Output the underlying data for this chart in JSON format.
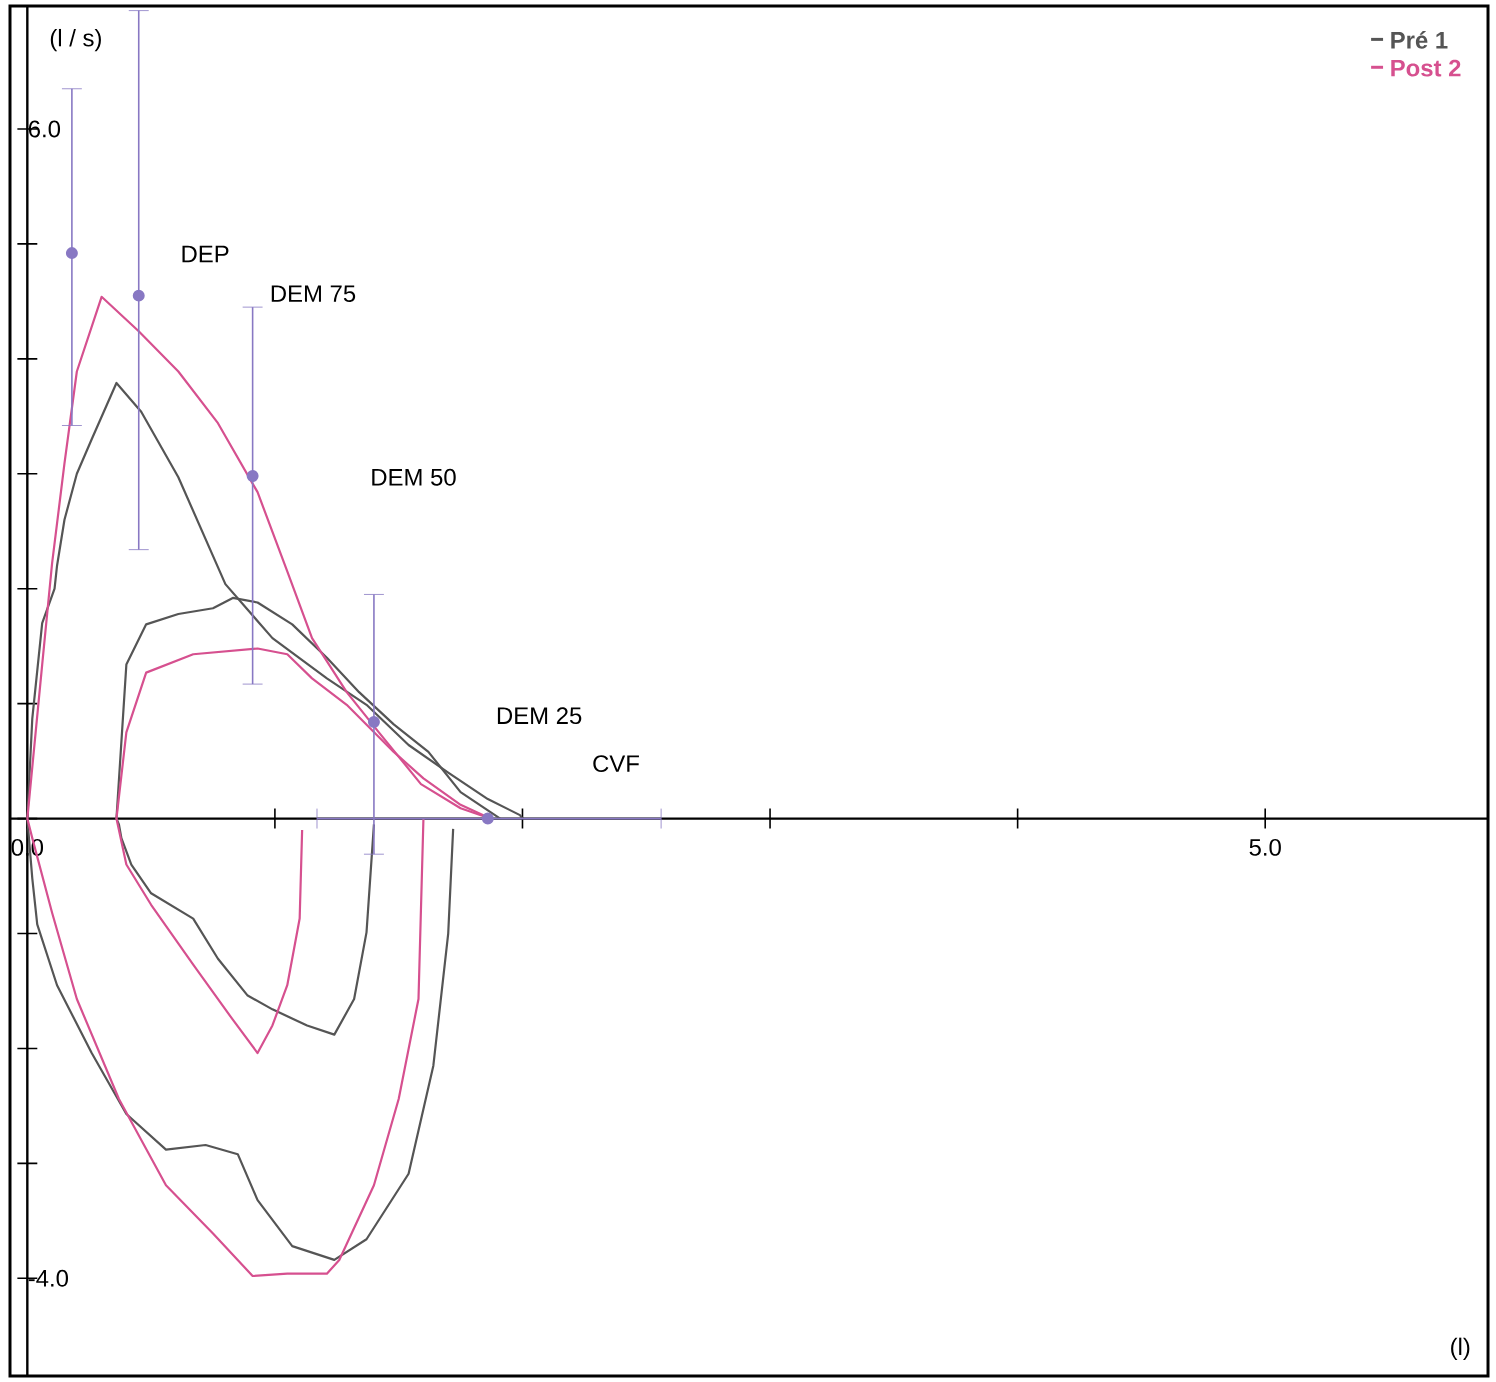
{
  "chart_data": {
    "type": "line",
    "xlabel": "(l)",
    "ylabel": "(l / s)",
    "legend": "top right",
    "xlim": [
      -0.07,
      5.9
    ],
    "ylim": [
      -4.85,
      7.07
    ],
    "xticks": [
      {
        "value": 0,
        "label": "0.0"
      },
      {
        "value": 1,
        "label": null
      },
      {
        "value": 2,
        "label": null
      },
      {
        "value": 3,
        "label": null
      },
      {
        "value": 4,
        "label": null
      },
      {
        "value": 5,
        "label": "5.0"
      }
    ],
    "yticks": [
      {
        "value": -4,
        "label": "-4.0"
      },
      {
        "value": -3,
        "label": null
      },
      {
        "value": -2,
        "label": null
      },
      {
        "value": -1,
        "label": null
      },
      {
        "value": 0,
        "label": null
      },
      {
        "value": 1,
        "label": null
      },
      {
        "value": 2,
        "label": null
      },
      {
        "value": 3,
        "label": null
      },
      {
        "value": 4,
        "label": null
      },
      {
        "value": 5,
        "label": null
      },
      {
        "value": 6,
        "label": "6.0"
      }
    ],
    "series": [
      {
        "name": "Pré 1",
        "color": "#555555",
        "x": [
          0,
          0.02,
          0.06,
          0.11,
          0.12,
          0.15,
          0.2,
          0.26,
          0.36,
          0.46,
          0.61,
          0.8,
          0.99,
          1.21,
          1.37,
          1.54,
          1.7,
          1.86,
          1.99,
          2.0,
          1.86,
          1.72,
          1.7,
          1.64,
          1.54,
          1.37,
          1.24,
          1.07,
          0.93,
          0.85,
          0.72,
          0.56,
          0.4,
          0.26,
          0.12,
          0.04,
          0.02,
          0
        ],
        "values": [
          0,
          0.87,
          1.7,
          2.0,
          2.2,
          2.6,
          3.0,
          3.3,
          3.79,
          3.54,
          2.97,
          2.04,
          1.57,
          1.22,
          0.99,
          0.64,
          0.4,
          0.17,
          0.03,
          0,
          null,
          -0.09,
          -1.0,
          -2.15,
          -3.09,
          -3.66,
          -3.84,
          -3.72,
          -3.32,
          -2.92,
          -2.84,
          -2.88,
          -2.57,
          -2.04,
          -1.45,
          -0.92,
          -0.52,
          0
        ]
      },
      {
        "color": "#555555",
        "x": [
          1.4,
          1.37,
          1.32,
          1.24,
          1.13,
          0.99,
          0.89,
          0.77,
          0.67,
          0.5,
          0.42,
          0.38,
          0.37,
          0.36,
          0.4,
          0.48,
          0.61,
          0.75,
          0.83,
          0.93,
          1.07,
          1.21,
          1.34,
          1.48,
          1.62,
          1.75,
          1.91
        ],
        "values": [
          -0.05,
          -0.99,
          -1.57,
          -1.88,
          -1.8,
          -1.66,
          -1.54,
          -1.22,
          -0.87,
          -0.65,
          -0.4,
          -0.17,
          -0.05,
          0,
          1.34,
          1.69,
          1.78,
          1.83,
          1.92,
          1.88,
          1.69,
          1.4,
          1.1,
          0.82,
          0.58,
          0.23,
          0
        ]
      },
      {
        "name": "Post 2",
        "color": "#d6508f",
        "x": [
          0,
          0.06,
          0.1,
          0.15,
          0.2,
          0.3,
          0.45,
          0.61,
          0.77,
          0.93,
          1.05,
          1.15,
          1.29,
          1.42,
          1.59,
          1.75,
          1.87,
          1.75,
          1.6,
          1.58,
          1.5,
          1.4,
          1.26,
          1.21,
          1.05,
          0.91,
          0.75,
          0.56,
          0.37,
          0.2,
          0.1,
          0.02,
          0
        ],
        "values": [
          0,
          1.34,
          2.22,
          3.09,
          3.89,
          4.54,
          4.24,
          3.89,
          3.44,
          2.84,
          2.15,
          1.57,
          1.1,
          0.75,
          0.3,
          0.09,
          0,
          null,
          0,
          -1.57,
          -2.44,
          -3.19,
          -3.84,
          -3.96,
          -3.96,
          -3.98,
          -3.61,
          -3.19,
          -2.44,
          -1.57,
          -0.82,
          -0.17,
          0
        ]
      },
      {
        "color": "#d6508f",
        "x": [
          1.11,
          1.1,
          1.05,
          0.99,
          0.93,
          0.83,
          0.67,
          0.5,
          0.4,
          0.36,
          0.4,
          0.48,
          0.67,
          0.93,
          1.05,
          1.15,
          1.29,
          1.48,
          1.6,
          1.75,
          1.87
        ],
        "values": [
          -0.1,
          -0.87,
          -1.45,
          -1.8,
          -2.04,
          -1.75,
          -1.27,
          -0.75,
          -0.4,
          0,
          0.75,
          1.27,
          1.43,
          1.48,
          1.43,
          1.22,
          0.99,
          0.58,
          0.35,
          0.12,
          0
        ]
      },
      {
        "type": "scatter",
        "color": "#8878c3",
        "x": [
          0.18,
          0.45,
          0.91,
          1.4,
          1.86
        ],
        "values": [
          4.92,
          4.55,
          2.98,
          0.84,
          0
        ],
        "errors": [
          [
            3.42,
            6.35
          ],
          [
            2.34,
            7.03
          ],
          [
            1.17,
            4.45
          ],
          [
            -0.31,
            1.95
          ],
          null
        ],
        "xerrors": [
          null,
          null,
          null,
          null,
          [
            1.17,
            2.56
          ]
        ]
      }
    ],
    "annotations": [
      "DEP",
      "DEM 75",
      "DEM 50",
      "DEM 25",
      "CVF"
    ]
  }
}
